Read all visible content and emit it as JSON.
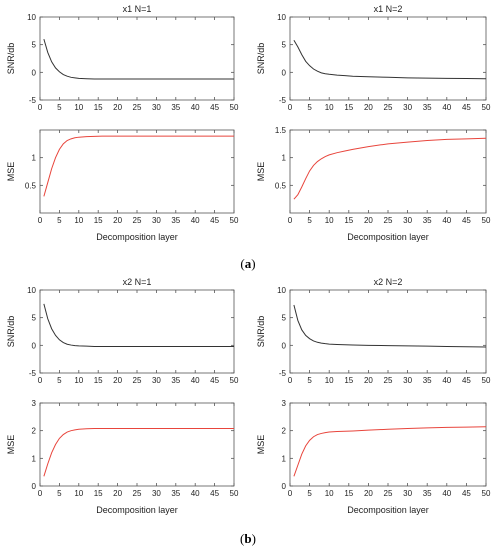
{
  "figure": {
    "caption_a": {
      "open": "(",
      "letter": "a",
      "close": ")"
    },
    "caption_b": {
      "open": "(",
      "letter": "b",
      "close": ")"
    }
  },
  "chart_data": [
    {
      "id": "a_left_snr",
      "panel": "a",
      "type": "line",
      "title": "x1 N=1",
      "xlabel": "",
      "ylabel": "SNR/db",
      "xlim": [
        0,
        50
      ],
      "ylim": [
        -5,
        10
      ],
      "xticks": [
        0,
        5,
        10,
        15,
        20,
        25,
        30,
        35,
        40,
        45,
        50
      ],
      "yticks": [
        -5,
        0,
        5,
        10
      ],
      "series": [
        {
          "color": "#333333",
          "x": [
            1,
            2,
            3,
            4,
            5,
            6,
            7,
            8,
            9,
            10,
            12,
            14,
            16,
            20,
            25,
            30,
            35,
            40,
            45,
            50
          ],
          "y": [
            6.0,
            3.6,
            1.9,
            0.8,
            0.1,
            -0.4,
            -0.7,
            -0.9,
            -1.0,
            -1.1,
            -1.15,
            -1.2,
            -1.2,
            -1.2,
            -1.2,
            -1.2,
            -1.2,
            -1.2,
            -1.2,
            -1.2
          ]
        }
      ]
    },
    {
      "id": "a_left_mse",
      "panel": "a",
      "type": "line",
      "title": "",
      "xlabel": "Decomposition layer",
      "ylabel": "MSE",
      "xlim": [
        0,
        50
      ],
      "ylim": [
        0,
        1.5
      ],
      "xticks": [
        0,
        5,
        10,
        15,
        20,
        25,
        30,
        35,
        40,
        45,
        50
      ],
      "yticks": [
        0.5,
        1
      ],
      "series": [
        {
          "color": "#e8453c",
          "x": [
            1,
            2,
            3,
            4,
            5,
            6,
            7,
            8,
            9,
            10,
            12,
            14,
            16,
            20,
            25,
            30,
            35,
            40,
            45,
            50
          ],
          "y": [
            0.3,
            0.55,
            0.8,
            1.0,
            1.15,
            1.25,
            1.31,
            1.34,
            1.36,
            1.37,
            1.38,
            1.385,
            1.39,
            1.39,
            1.39,
            1.39,
            1.39,
            1.39,
            1.39,
            1.39
          ]
        }
      ]
    },
    {
      "id": "a_right_snr",
      "panel": "a",
      "type": "line",
      "title": "x1 N=2",
      "xlabel": "",
      "ylabel": "SNR/db",
      "xlim": [
        0,
        50
      ],
      "ylim": [
        -5,
        10
      ],
      "xticks": [
        0,
        5,
        10,
        15,
        20,
        25,
        30,
        35,
        40,
        45,
        50
      ],
      "yticks": [
        -5,
        0,
        5,
        10
      ],
      "series": [
        {
          "color": "#333333",
          "x": [
            1,
            2,
            3,
            4,
            5,
            6,
            7,
            8,
            9,
            10,
            12,
            14,
            16,
            20,
            25,
            30,
            35,
            40,
            45,
            50
          ],
          "y": [
            5.8,
            4.6,
            3.2,
            2.0,
            1.2,
            0.6,
            0.2,
            -0.1,
            -0.25,
            -0.35,
            -0.5,
            -0.6,
            -0.7,
            -0.8,
            -0.9,
            -1.0,
            -1.05,
            -1.1,
            -1.12,
            -1.15
          ]
        }
      ]
    },
    {
      "id": "a_right_mse",
      "panel": "a",
      "type": "line",
      "title": "",
      "xlabel": "Decomposition layer",
      "ylabel": "MSE",
      "xlim": [
        0,
        50
      ],
      "ylim": [
        0,
        1.5
      ],
      "xticks": [
        0,
        5,
        10,
        15,
        20,
        25,
        30,
        35,
        40,
        45,
        50
      ],
      "yticks": [
        0.5,
        1,
        1.5
      ],
      "series": [
        {
          "color": "#e8453c",
          "x": [
            1,
            2,
            3,
            4,
            5,
            6,
            7,
            8,
            9,
            10,
            12,
            14,
            16,
            20,
            25,
            30,
            35,
            40,
            45,
            50
          ],
          "y": [
            0.25,
            0.33,
            0.47,
            0.62,
            0.76,
            0.86,
            0.93,
            0.98,
            1.02,
            1.05,
            1.09,
            1.12,
            1.15,
            1.2,
            1.25,
            1.28,
            1.31,
            1.33,
            1.34,
            1.35
          ]
        }
      ]
    },
    {
      "id": "b_left_snr",
      "panel": "b",
      "type": "line",
      "title": "x2 N=1",
      "xlabel": "",
      "ylabel": "SNR/db",
      "xlim": [
        0,
        50
      ],
      "ylim": [
        -5,
        10
      ],
      "xticks": [
        0,
        5,
        10,
        15,
        20,
        25,
        30,
        35,
        40,
        45,
        50
      ],
      "yticks": [
        -5,
        0,
        5,
        10
      ],
      "series": [
        {
          "color": "#333333",
          "x": [
            1,
            2,
            3,
            4,
            5,
            6,
            7,
            8,
            9,
            10,
            12,
            14,
            16,
            20,
            25,
            30,
            35,
            40,
            45,
            50
          ],
          "y": [
            7.5,
            4.8,
            3.0,
            1.8,
            1.0,
            0.5,
            0.2,
            0.05,
            -0.05,
            -0.1,
            -0.15,
            -0.2,
            -0.2,
            -0.2,
            -0.2,
            -0.2,
            -0.2,
            -0.2,
            -0.2,
            -0.2
          ]
        }
      ]
    },
    {
      "id": "b_left_mse",
      "panel": "b",
      "type": "line",
      "title": "",
      "xlabel": "Decomposition layer",
      "ylabel": "MSE",
      "xlim": [
        0,
        50
      ],
      "ylim": [
        0,
        3
      ],
      "xticks": [
        0,
        5,
        10,
        15,
        20,
        25,
        30,
        35,
        40,
        45,
        50
      ],
      "yticks": [
        0,
        1,
        2,
        3
      ],
      "series": [
        {
          "color": "#e8453c",
          "x": [
            1,
            2,
            3,
            4,
            5,
            6,
            7,
            8,
            9,
            10,
            12,
            14,
            16,
            20,
            25,
            30,
            35,
            40,
            45,
            50
          ],
          "y": [
            0.35,
            0.8,
            1.2,
            1.5,
            1.72,
            1.86,
            1.95,
            2.0,
            2.03,
            2.05,
            2.07,
            2.08,
            2.08,
            2.08,
            2.08,
            2.08,
            2.08,
            2.08,
            2.08,
            2.08
          ]
        }
      ]
    },
    {
      "id": "b_right_snr",
      "panel": "b",
      "type": "line",
      "title": "x2 N=2",
      "xlabel": "",
      "ylabel": "SNR/db",
      "xlim": [
        0,
        50
      ],
      "ylim": [
        -5,
        10
      ],
      "xticks": [
        0,
        5,
        10,
        15,
        20,
        25,
        30,
        35,
        40,
        45,
        50
      ],
      "yticks": [
        -5,
        0,
        5,
        10
      ],
      "series": [
        {
          "color": "#333333",
          "x": [
            1,
            2,
            3,
            4,
            5,
            6,
            7,
            8,
            9,
            10,
            12,
            14,
            16,
            20,
            25,
            30,
            35,
            40,
            45,
            50
          ],
          "y": [
            7.3,
            4.5,
            2.8,
            1.8,
            1.2,
            0.8,
            0.55,
            0.4,
            0.3,
            0.22,
            0.15,
            0.1,
            0.05,
            0.0,
            -0.05,
            -0.1,
            -0.15,
            -0.2,
            -0.25,
            -0.3
          ]
        }
      ]
    },
    {
      "id": "b_right_mse",
      "panel": "b",
      "type": "line",
      "title": "",
      "xlabel": "Decomposition layer",
      "ylabel": "MSE",
      "xlim": [
        0,
        50
      ],
      "ylim": [
        0,
        3
      ],
      "xticks": [
        0,
        5,
        10,
        15,
        20,
        25,
        30,
        35,
        40,
        45,
        50
      ],
      "yticks": [
        0,
        1,
        2,
        3
      ],
      "series": [
        {
          "color": "#e8453c",
          "x": [
            1,
            2,
            3,
            4,
            5,
            6,
            7,
            8,
            9,
            10,
            12,
            14,
            16,
            20,
            25,
            30,
            35,
            40,
            45,
            50
          ],
          "y": [
            0.35,
            0.75,
            1.15,
            1.45,
            1.65,
            1.78,
            1.86,
            1.9,
            1.93,
            1.95,
            1.97,
            1.98,
            1.99,
            2.02,
            2.05,
            2.08,
            2.1,
            2.12,
            2.13,
            2.14
          ]
        }
      ]
    }
  ]
}
